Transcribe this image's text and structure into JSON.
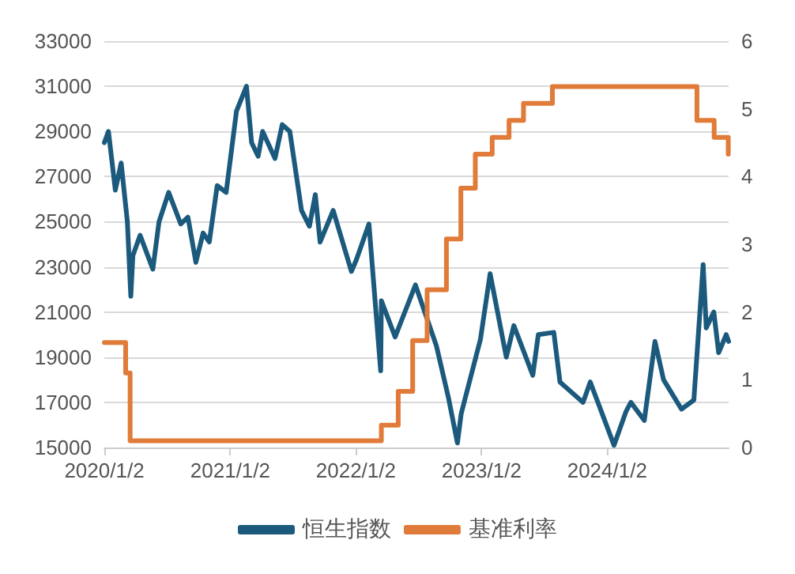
{
  "chart_data": {
    "type": "line",
    "x": [
      "2020-01-02",
      "2020-01-14",
      "2020-02-03",
      "2020-02-20",
      "2020-03-09",
      "2020-03-19",
      "2020-03-25",
      "2020-04-15",
      "2020-05-22",
      "2020-06-09",
      "2020-07-07",
      "2020-08-11",
      "2020-09-01",
      "2020-09-24",
      "2020-10-15",
      "2020-11-02",
      "2020-11-25",
      "2020-12-21",
      "2021-01-20",
      "2021-02-18",
      "2021-03-05",
      "2021-03-24",
      "2021-04-06",
      "2021-05-12",
      "2021-06-02",
      "2021-06-24",
      "2021-07-28",
      "2021-08-20",
      "2021-09-06",
      "2021-09-20",
      "2021-10-28",
      "2021-12-20",
      "2022-01-03",
      "2022-02-09",
      "2022-03-15",
      "2022-03-17",
      "2022-04-26",
      "2022-06-24",
      "2022-08-24",
      "2022-09-28",
      "2022-10-24",
      "2022-11-04",
      "2022-12-30",
      "2023-01-27",
      "2023-03-15",
      "2023-04-06",
      "2023-05-31",
      "2023-06-16",
      "2023-07-31",
      "2023-08-18",
      "2023-10-24",
      "2023-11-14",
      "2024-01-22",
      "2024-02-26",
      "2024-03-11",
      "2024-04-19",
      "2024-05-20",
      "2024-06-14",
      "2024-08-05",
      "2024-09-10",
      "2024-10-07",
      "2024-10-16",
      "2024-11-07",
      "2024-11-21",
      "2024-12-13",
      "2024-12-20"
    ],
    "series": [
      {
        "name": "恒生指数",
        "color": "#1b5a7d",
        "values": [
          28500,
          29000,
          26400,
          27600,
          25000,
          21700,
          23500,
          24400,
          22900,
          25000,
          26300,
          24900,
          25200,
          23200,
          24500,
          24100,
          26600,
          26300,
          29900,
          31000,
          28500,
          27900,
          29000,
          27800,
          29300,
          29000,
          25500,
          24800,
          26200,
          24100,
          25500,
          22800,
          23300,
          24900,
          18400,
          21500,
          19900,
          22200,
          19500,
          17200,
          15200,
          16500,
          19800,
          22700,
          19000,
          20400,
          18200,
          20000,
          20100,
          17900,
          17000,
          17900,
          15100,
          16600,
          17000,
          16200,
          19700,
          18000,
          16700,
          17100,
          23100,
          20300,
          21000,
          19200,
          20000,
          19700
        ]
      },
      {
        "name": "基准利率",
        "color": "#e07b39",
        "type": "step",
        "axis": "y2",
        "x": [
          "2020-01-02",
          "2020-03-04",
          "2020-03-17",
          "2022-03-17",
          "2022-05-05",
          "2022-06-16",
          "2022-07-28",
          "2022-09-22",
          "2022-11-03",
          "2022-12-15",
          "2023-02-02",
          "2023-03-23",
          "2023-05-04",
          "2023-07-27",
          "2024-09-19",
          "2024-11-08",
          "2024-12-19",
          "2024-12-20"
        ],
        "values": [
          1.55,
          1.1,
          0.1,
          0.33,
          0.83,
          1.58,
          2.33,
          3.08,
          3.83,
          4.33,
          4.58,
          4.83,
          5.08,
          5.33,
          4.83,
          4.58,
          4.33,
          4.33
        ]
      }
    ],
    "xlim": [
      "2020-01-02",
      "2024-12-20"
    ],
    "xticks": [
      {
        "value": "2020-01-02",
        "label": "2020/1/2"
      },
      {
        "value": "2021-01-02",
        "label": "2021/1/2"
      },
      {
        "value": "2022-01-02",
        "label": "2022/1/2"
      },
      {
        "value": "2023-01-02",
        "label": "2023/1/2"
      },
      {
        "value": "2024-01-02",
        "label": "2024/1/2"
      }
    ],
    "ylim": [
      15000,
      33000
    ],
    "yticks": [
      15000,
      17000,
      19000,
      21000,
      23000,
      25000,
      27000,
      29000,
      31000,
      33000
    ],
    "y2lim": [
      0,
      6
    ],
    "y2ticks": [
      0,
      1,
      2,
      3,
      4,
      5,
      6
    ],
    "grid": "y",
    "legend": "bottom",
    "marker": "none",
    "line_style": "solid"
  }
}
